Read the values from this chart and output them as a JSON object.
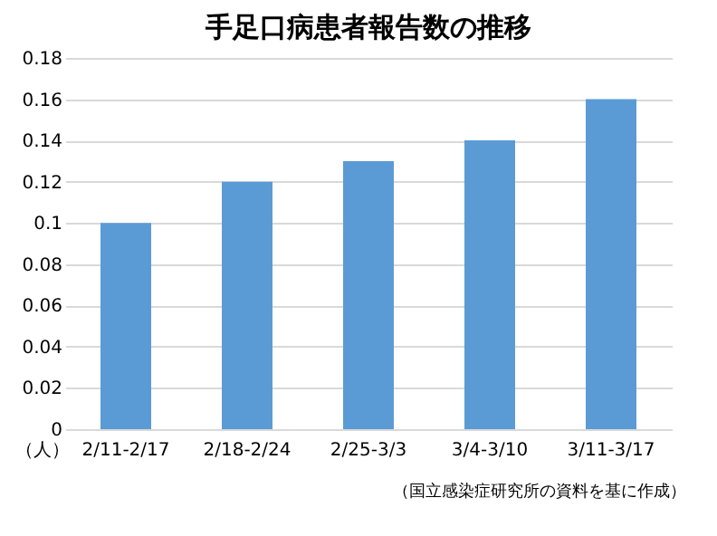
{
  "chart_data": {
    "type": "bar",
    "title": "手足口病患者報告数の推移",
    "ylabel": "（人）",
    "categories": [
      "2/11-2/17",
      "2/18-2/24",
      "2/25-3/3",
      "3/4-3/10",
      "3/11-3/17"
    ],
    "values": [
      0.1,
      0.12,
      0.13,
      0.14,
      0.16
    ],
    "color": "#5b9bd5",
    "ylim": [
      0,
      0.18
    ],
    "yticks": [
      0,
      0.02,
      0.04,
      0.06,
      0.08,
      0.1,
      0.12,
      0.14,
      0.16,
      0.18
    ],
    "grid": "y",
    "annotations": [
      "（国立感染症研究所の資料を基に作成）"
    ]
  }
}
